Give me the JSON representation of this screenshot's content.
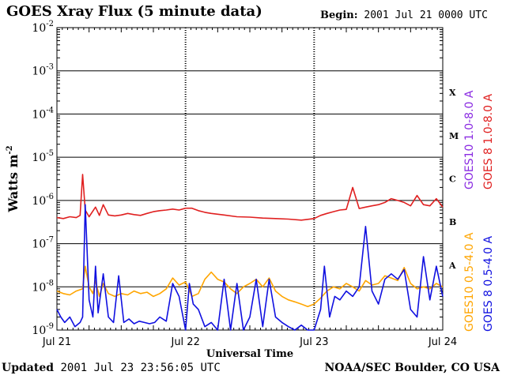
{
  "header": {
    "title": "GOES Xray Flux (5 minute data)",
    "begin_label": "Begin:",
    "begin_value": "2001 Jul 21 0000 UTC"
  },
  "footer": {
    "updated_label": "Updated",
    "updated_value": "2001 Jul 23 23:56:05 UTC",
    "credit": "NOAA/SEC Boulder, CO USA"
  },
  "chart_data": {
    "type": "line",
    "title": "GOES Xray Flux (5 minute data)",
    "xlabel": "Universal Time",
    "ylabel": "Watts m",
    "ylabel_superscript": "-2",
    "yscale": "log",
    "ylim": [
      1e-09,
      0.01
    ],
    "xlim": [
      0,
      3
    ],
    "x_unit": "days since 2001 Jul 21 0000 UTC",
    "x_ticks": [
      {
        "value": 0,
        "label": "Jul 21"
      },
      {
        "value": 1,
        "label": "Jul 22"
      },
      {
        "value": 2,
        "label": "Jul 23"
      },
      {
        "value": 3,
        "label": "Jul 24"
      }
    ],
    "y_ticks": [
      {
        "exp": -9,
        "base": "10",
        "sup": "-9"
      },
      {
        "exp": -8,
        "base": "10",
        "sup": "-8"
      },
      {
        "exp": -7,
        "base": "10",
        "sup": "-7"
      },
      {
        "exp": -6,
        "base": "10",
        "sup": "-6"
      },
      {
        "exp": -5,
        "base": "10",
        "sup": "-5"
      },
      {
        "exp": -4,
        "base": "10",
        "sup": "-4"
      },
      {
        "exp": -3,
        "base": "10",
        "sup": "-3"
      },
      {
        "exp": -2,
        "base": "10",
        "sup": "-2"
      }
    ],
    "flare_classes": [
      {
        "label": "A",
        "exp": -7.5
      },
      {
        "label": "B",
        "exp": -6.5
      },
      {
        "label": "C",
        "exp": -5.5
      },
      {
        "label": "M",
        "exp": -4.5
      },
      {
        "label": "X",
        "exp": -3.5
      }
    ],
    "legend": [
      {
        "label": "GOES10 1.0-8.0 A",
        "color": "#8a2be2"
      },
      {
        "label": "GOES 8 1.0-8.0 A",
        "color": "#e02020"
      },
      {
        "label": "GOES10 0.5-4.0 A",
        "color": "#ffa500"
      },
      {
        "label": "GOES 8 0.5-4.0 A",
        "color": "#1010e0"
      }
    ],
    "series": [
      {
        "name": "GOES 8 1.0-8.0 A",
        "color": "#e02020",
        "x": [
          0.0,
          0.05,
          0.1,
          0.15,
          0.18,
          0.2,
          0.22,
          0.25,
          0.3,
          0.33,
          0.36,
          0.4,
          0.45,
          0.5,
          0.55,
          0.6,
          0.65,
          0.7,
          0.75,
          0.8,
          0.85,
          0.9,
          0.95,
          1.0,
          1.05,
          1.1,
          1.15,
          1.2,
          1.3,
          1.4,
          1.5,
          1.6,
          1.7,
          1.8,
          1.9,
          2.0,
          2.05,
          2.1,
          2.15,
          2.2,
          2.25,
          2.3,
          2.35,
          2.4,
          2.45,
          2.5,
          2.55,
          2.6,
          2.65,
          2.7,
          2.75,
          2.8,
          2.85,
          2.9,
          2.95,
          3.0
        ],
        "y": [
          4e-07,
          3.8e-07,
          4.2e-07,
          4e-07,
          4.5e-07,
          4e-06,
          6e-07,
          4.2e-07,
          7e-07,
          4.5e-07,
          8e-07,
          4.6e-07,
          4.4e-07,
          4.6e-07,
          5e-07,
          4.7e-07,
          4.5e-07,
          5e-07,
          5.5e-07,
          5.8e-07,
          6e-07,
          6.3e-07,
          6e-07,
          6.6e-07,
          6.6e-07,
          5.8e-07,
          5.3e-07,
          5e-07,
          4.6e-07,
          4.2e-07,
          4.1e-07,
          3.9e-07,
          3.8e-07,
          3.7e-07,
          3.5e-07,
          3.8e-07,
          4.5e-07,
          5e-07,
          5.5e-07,
          6e-07,
          6.2e-07,
          2e-06,
          6.5e-07,
          7e-07,
          7.5e-07,
          8e-07,
          9e-07,
          1.1e-06,
          1e-06,
          9e-07,
          7.5e-07,
          1.3e-06,
          8e-07,
          7.5e-07,
          1.1e-06,
          7e-07
        ]
      },
      {
        "name": "GOES10 0.5-4.0 A",
        "color": "#ffa500",
        "x": [
          0.0,
          0.05,
          0.1,
          0.15,
          0.2,
          0.22,
          0.25,
          0.28,
          0.3,
          0.33,
          0.36,
          0.4,
          0.45,
          0.5,
          0.55,
          0.6,
          0.65,
          0.7,
          0.75,
          0.8,
          0.85,
          0.9,
          0.95,
          1.0,
          1.05,
          1.1,
          1.15,
          1.2,
          1.25,
          1.3,
          1.35,
          1.4,
          1.45,
          1.5,
          1.55,
          1.6,
          1.65,
          1.7,
          1.75,
          1.8,
          1.85,
          1.9,
          1.95,
          2.0,
          2.05,
          2.1,
          2.15,
          2.2,
          2.25,
          2.3,
          2.35,
          2.4,
          2.45,
          2.5,
          2.55,
          2.6,
          2.65,
          2.7,
          2.75,
          2.8,
          2.85,
          2.9,
          2.95,
          3.0
        ],
        "y": [
          8e-09,
          7e-09,
          6.5e-09,
          8e-09,
          9e-09,
          3e-08,
          1e-08,
          7e-09,
          1.4e-08,
          6e-09,
          1.2e-08,
          7e-09,
          6e-09,
          7e-09,
          6.5e-09,
          8e-09,
          7e-09,
          7.5e-09,
          6e-09,
          7e-09,
          9e-09,
          1.6e-08,
          1.1e-08,
          1.3e-08,
          6e-09,
          7e-09,
          1.5e-08,
          2.2e-08,
          1.5e-08,
          1.3e-08,
          9e-09,
          7e-09,
          1e-08,
          1.2e-08,
          1.5e-08,
          1e-08,
          1.6e-08,
          8e-09,
          6e-09,
          5e-09,
          4.5e-09,
          4e-09,
          3.5e-09,
          4e-09,
          5.5e-09,
          8e-09,
          1e-08,
          9e-09,
          1.2e-08,
          1e-08,
          8e-09,
          1.4e-08,
          1.1e-08,
          1.2e-08,
          1.8e-08,
          1.6e-08,
          1.4e-08,
          2.8e-08,
          1.2e-08,
          9e-09,
          1e-08,
          9e-09,
          1.2e-08,
          1e-08
        ]
      },
      {
        "name": "GOES 8 0.5-4.0 A",
        "color": "#1010e0",
        "x": [
          0.0,
          0.03,
          0.06,
          0.1,
          0.14,
          0.18,
          0.2,
          0.22,
          0.25,
          0.28,
          0.3,
          0.32,
          0.36,
          0.4,
          0.44,
          0.48,
          0.52,
          0.56,
          0.6,
          0.64,
          0.68,
          0.72,
          0.76,
          0.8,
          0.85,
          0.9,
          0.95,
          1.0,
          1.03,
          1.06,
          1.1,
          1.15,
          1.2,
          1.25,
          1.3,
          1.35,
          1.4,
          1.45,
          1.5,
          1.55,
          1.6,
          1.65,
          1.7,
          1.75,
          1.8,
          1.85,
          1.9,
          1.95,
          2.0,
          2.05,
          2.08,
          2.12,
          2.16,
          2.2,
          2.25,
          2.3,
          2.35,
          2.4,
          2.45,
          2.5,
          2.55,
          2.6,
          2.65,
          2.7,
          2.75,
          2.8,
          2.85,
          2.9,
          2.95,
          3.0
        ],
        "y": [
          3e-09,
          2e-09,
          1.5e-09,
          2e-09,
          1.2e-09,
          1.5e-09,
          2e-09,
          8e-07,
          5e-09,
          2e-09,
          3e-08,
          2.5e-09,
          2e-08,
          2e-09,
          1.5e-09,
          1.8e-08,
          1.5e-09,
          1.8e-09,
          1.4e-09,
          1.6e-09,
          1.5e-09,
          1.4e-09,
          1.5e-09,
          2e-09,
          1.6e-09,
          1.2e-08,
          6e-09,
          1e-09,
          1.2e-08,
          4e-09,
          3e-09,
          1.2e-09,
          1.5e-09,
          1e-09,
          1.5e-08,
          1e-09,
          1.2e-08,
          1e-09,
          2e-09,
          1.5e-08,
          1.2e-09,
          1.5e-08,
          2e-09,
          1.5e-09,
          1.2e-09,
          1e-09,
          1.3e-09,
          1e-09,
          1e-09,
          3e-09,
          3e-08,
          2e-09,
          6e-09,
          5e-09,
          8e-09,
          6e-09,
          1e-08,
          2.5e-07,
          8e-09,
          4e-09,
          1.5e-08,
          2e-08,
          1.5e-08,
          2.5e-08,
          3e-09,
          2e-09,
          5e-08,
          5e-09,
          3e-08,
          6e-09
        ]
      }
    ]
  }
}
